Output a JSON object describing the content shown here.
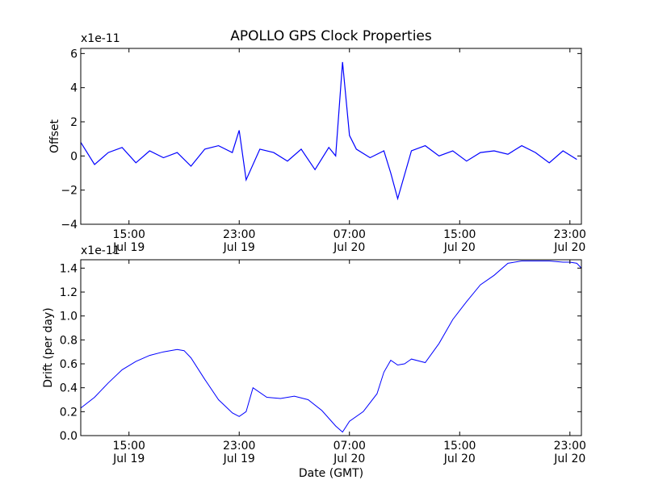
{
  "title": "APOLLO GPS Clock Properties",
  "chart_data": [
    {
      "type": "line",
      "ylabel": "Offset",
      "xlabel": "",
      "multiplier_label": "x1e-11",
      "ylim": [
        -4,
        6.3
      ],
      "xlim": [
        "2009-07-19T11:30",
        "2009-07-20T23:50"
      ],
      "yticks": [
        -4,
        -2,
        0,
        2,
        4,
        6
      ],
      "ytick_labels": [
        "−4",
        "−2",
        "0",
        "2",
        "4",
        "6"
      ],
      "xticks": [
        {
          "x": "2009-07-19T15:00",
          "line1": "15:00",
          "line2": "Jul 19"
        },
        {
          "x": "2009-07-19T23:00",
          "line1": "23:00",
          "line2": "Jul 19"
        },
        {
          "x": "2009-07-20T07:00",
          "line1": "07:00",
          "line2": "Jul 20"
        },
        {
          "x": "2009-07-20T15:00",
          "line1": "15:00",
          "line2": "Jul 20"
        },
        {
          "x": "2009-07-20T23:00",
          "line1": "23:00",
          "line2": "Jul 20"
        }
      ],
      "grid": false,
      "color": "#0000ff",
      "series": [
        {
          "x": [
            "2009-07-19T11:30",
            "2009-07-19T12:30",
            "2009-07-19T13:30",
            "2009-07-19T14:30",
            "2009-07-19T15:30",
            "2009-07-19T16:30",
            "2009-07-19T17:30",
            "2009-07-19T18:30",
            "2009-07-19T19:30",
            "2009-07-19T20:30",
            "2009-07-19T21:30",
            "2009-07-19T22:30",
            "2009-07-19T23:00",
            "2009-07-19T23:30",
            "2009-07-20T00:30",
            "2009-07-20T01:30",
            "2009-07-20T02:30",
            "2009-07-20T03:30",
            "2009-07-20T04:30",
            "2009-07-20T05:30",
            "2009-07-20T06:00",
            "2009-07-20T06:30",
            "2009-07-20T07:00",
            "2009-07-20T07:30",
            "2009-07-20T08:30",
            "2009-07-20T09:30",
            "2009-07-20T10:00",
            "2009-07-20T10:30",
            "2009-07-20T11:30",
            "2009-07-20T12:30",
            "2009-07-20T13:30",
            "2009-07-20T14:30",
            "2009-07-20T15:30",
            "2009-07-20T16:30",
            "2009-07-20T17:30",
            "2009-07-20T18:30",
            "2009-07-20T19:30",
            "2009-07-20T20:30",
            "2009-07-20T21:30",
            "2009-07-20T22:30",
            "2009-07-20T23:30"
          ],
          "values": [
            0.8,
            -0.5,
            0.2,
            0.5,
            -0.4,
            0.3,
            -0.1,
            0.2,
            -0.6,
            0.4,
            0.6,
            0.2,
            1.5,
            -1.4,
            0.4,
            0.2,
            -0.3,
            0.4,
            -0.8,
            0.5,
            0.0,
            5.5,
            1.2,
            0.4,
            -0.1,
            0.3,
            -1.0,
            -2.5,
            0.3,
            0.6,
            0.0,
            0.3,
            -0.3,
            0.2,
            0.3,
            0.1,
            0.6,
            0.2,
            -0.4,
            0.3,
            -0.2
          ]
        }
      ]
    },
    {
      "type": "line",
      "ylabel": "Drift (per day)",
      "xlabel": "Date (GMT)",
      "multiplier_label": "x1e-11",
      "ylim": [
        0.0,
        1.47
      ],
      "xlim": [
        "2009-07-19T11:30",
        "2009-07-20T23:50"
      ],
      "yticks": [
        0.0,
        0.2,
        0.4,
        0.6,
        0.8,
        1.0,
        1.2,
        1.4
      ],
      "ytick_labels": [
        "0.0",
        "0.2",
        "0.4",
        "0.6",
        "0.8",
        "1.0",
        "1.2",
        "1.4"
      ],
      "xticks": [
        {
          "x": "2009-07-19T15:00",
          "line1": "15:00",
          "line2": "Jul 19"
        },
        {
          "x": "2009-07-19T23:00",
          "line1": "23:00",
          "line2": "Jul 19"
        },
        {
          "x": "2009-07-20T07:00",
          "line1": "07:00",
          "line2": "Jul 20"
        },
        {
          "x": "2009-07-20T15:00",
          "line1": "15:00",
          "line2": "Jul 20"
        },
        {
          "x": "2009-07-20T23:00",
          "line1": "23:00",
          "line2": "Jul 20"
        }
      ],
      "grid": false,
      "color": "#0000ff",
      "series": [
        {
          "x": [
            "2009-07-19T11:30",
            "2009-07-19T12:30",
            "2009-07-19T13:30",
            "2009-07-19T14:30",
            "2009-07-19T15:30",
            "2009-07-19T16:30",
            "2009-07-19T17:30",
            "2009-07-19T18:30",
            "2009-07-19T19:00",
            "2009-07-19T19:30",
            "2009-07-19T20:30",
            "2009-07-19T21:30",
            "2009-07-19T22:30",
            "2009-07-19T23:00",
            "2009-07-19T23:30",
            "2009-07-20T00:00",
            "2009-07-20T01:00",
            "2009-07-20T02:00",
            "2009-07-20T03:00",
            "2009-07-20T04:00",
            "2009-07-20T05:00",
            "2009-07-20T06:00",
            "2009-07-20T06:30",
            "2009-07-20T07:00",
            "2009-07-20T08:00",
            "2009-07-20T09:00",
            "2009-07-20T09:30",
            "2009-07-20T10:00",
            "2009-07-20T10:30",
            "2009-07-20T11:00",
            "2009-07-20T11:30",
            "2009-07-20T12:30",
            "2009-07-20T13:30",
            "2009-07-20T14:30",
            "2009-07-20T15:30",
            "2009-07-20T16:30",
            "2009-07-20T17:30",
            "2009-07-20T18:30",
            "2009-07-20T19:30",
            "2009-07-20T20:30",
            "2009-07-20T21:30",
            "2009-07-20T22:30",
            "2009-07-20T23:00",
            "2009-07-20T23:30",
            "2009-07-20T23:50"
          ],
          "values": [
            0.23,
            0.32,
            0.44,
            0.55,
            0.62,
            0.67,
            0.7,
            0.72,
            0.71,
            0.65,
            0.47,
            0.3,
            0.19,
            0.16,
            0.2,
            0.4,
            0.32,
            0.31,
            0.33,
            0.3,
            0.21,
            0.08,
            0.03,
            0.12,
            0.2,
            0.35,
            0.53,
            0.63,
            0.59,
            0.6,
            0.64,
            0.61,
            0.77,
            0.97,
            1.12,
            1.26,
            1.34,
            1.44,
            1.46,
            1.46,
            1.46,
            1.45,
            1.45,
            1.44,
            1.4
          ]
        }
      ]
    }
  ]
}
